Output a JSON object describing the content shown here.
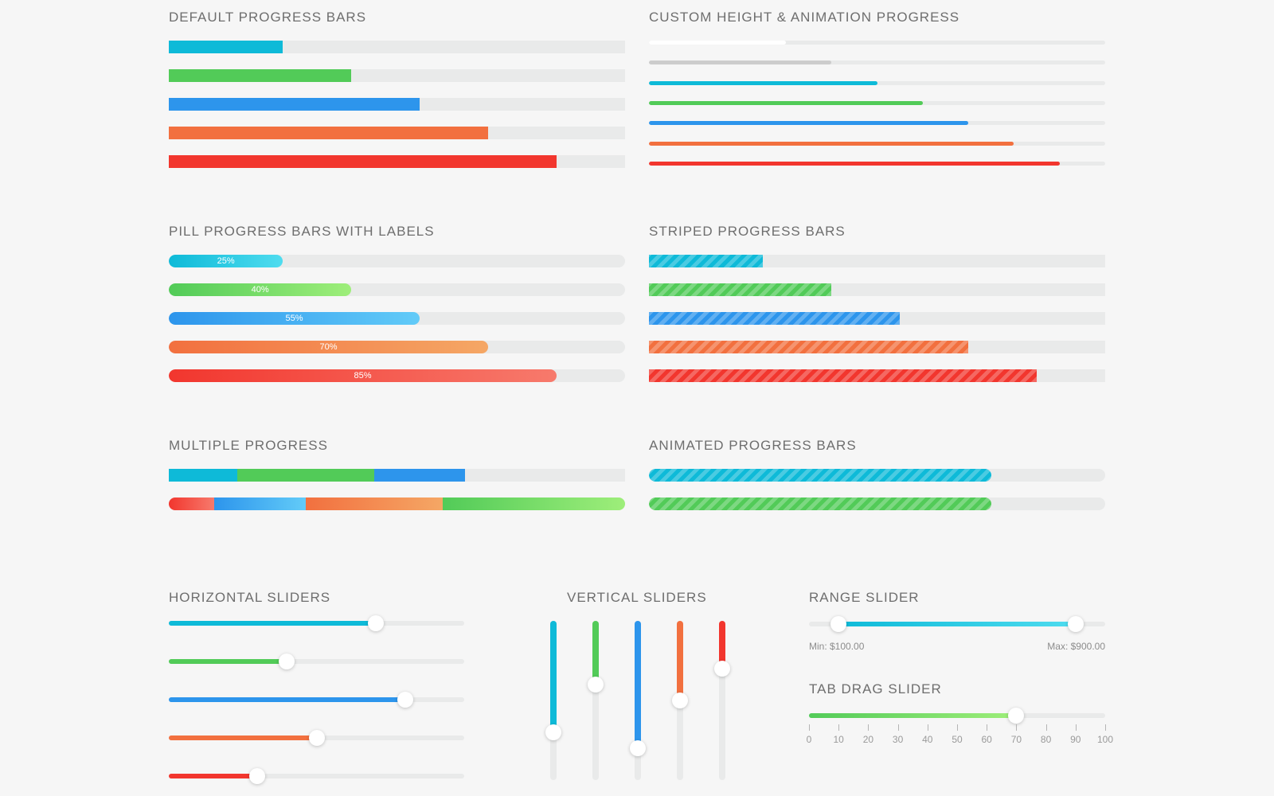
{
  "colors": {
    "cyan": "#0ebad8",
    "green": "#52cb58",
    "blue": "#2d95ec",
    "orange": "#f2703f",
    "red": "#f2362e",
    "gray": "#cccccc",
    "white": "#ffffff",
    "track": "#e9eaea"
  },
  "default_progress": {
    "title": "DEFAULT PROGRESS BARS",
    "bars": [
      {
        "value": 25,
        "color": "#0ebad8"
      },
      {
        "value": 40,
        "color": "#52cb58"
      },
      {
        "value": 55,
        "color": "#2d95ec"
      },
      {
        "value": 70,
        "color": "#f2703f"
      },
      {
        "value": 85,
        "color": "#f2362e"
      }
    ]
  },
  "custom_height": {
    "title": "CUSTOM HEIGHT & ANIMATION PROGRESS",
    "bars": [
      {
        "value": 30,
        "color": "#ffffff"
      },
      {
        "value": 40,
        "color": "#cccccc"
      },
      {
        "value": 50,
        "color": "#0ebad8"
      },
      {
        "value": 60,
        "color": "#52cb58"
      },
      {
        "value": 70,
        "color": "#2d95ec"
      },
      {
        "value": 80,
        "color": "#f2703f"
      },
      {
        "value": 90,
        "color": "#f2362e"
      }
    ]
  },
  "pill_progress": {
    "title": "PILL PROGRESS BARS WITH LABELS",
    "bars": [
      {
        "value": 25,
        "label": "25%",
        "from": "#0ebad8",
        "to": "#4fdcef"
      },
      {
        "value": 40,
        "label": "40%",
        "from": "#52cb58",
        "to": "#9eee7a"
      },
      {
        "value": 55,
        "label": "55%",
        "from": "#2d95ec",
        "to": "#62cbf8"
      },
      {
        "value": 70,
        "label": "70%",
        "from": "#f2703f",
        "to": "#f5a765"
      },
      {
        "value": 85,
        "label": "85%",
        "from": "#f2362e",
        "to": "#f77a6c"
      }
    ]
  },
  "striped_progress": {
    "title": "STRIPED PROGRESS BARS",
    "bars": [
      {
        "value": 25,
        "color": "#0ebad8"
      },
      {
        "value": 40,
        "color": "#52cb58"
      },
      {
        "value": 55,
        "color": "#2d95ec"
      },
      {
        "value": 70,
        "color": "#f2703f"
      },
      {
        "value": 85,
        "color": "#f2362e"
      }
    ]
  },
  "multiple_progress": {
    "title": "MULTIPLE PROGRESS",
    "bars": [
      {
        "segments": [
          {
            "value": 15,
            "from": "#0ebad8",
            "to": "#0ebad8"
          },
          {
            "value": 30,
            "from": "#52cb58",
            "to": "#52cb58"
          },
          {
            "value": 20,
            "from": "#2d95ec",
            "to": "#2d95ec"
          }
        ]
      },
      {
        "segments": [
          {
            "value": 10,
            "from": "#f2362e",
            "to": "#f77a6c"
          },
          {
            "value": 20,
            "from": "#2d95ec",
            "to": "#62cbf8"
          },
          {
            "value": 30,
            "from": "#f2703f",
            "to": "#f5a765"
          },
          {
            "value": 40,
            "from": "#52cb58",
            "to": "#9eee7a"
          }
        ]
      }
    ]
  },
  "animated_progress": {
    "title": "ANIMATED PROGRESS BARS",
    "bars": [
      {
        "value": 75,
        "color": "#0ebad8"
      },
      {
        "value": 75,
        "color": "#52cb58"
      }
    ]
  },
  "horizontal_sliders": {
    "title": "HORIZONTAL SLIDERS",
    "sliders": [
      {
        "value": 70,
        "color": "#0ebad8"
      },
      {
        "value": 40,
        "color": "#52cb58"
      },
      {
        "value": 80,
        "color": "#2d95ec"
      },
      {
        "value": 50,
        "color": "#f2703f"
      },
      {
        "value": 30,
        "color": "#f2362e"
      }
    ]
  },
  "vertical_sliders": {
    "title": "VERTICAL SLIDERS",
    "sliders": [
      {
        "value": 30,
        "color": "#0ebad8"
      },
      {
        "value": 60,
        "color": "#52cb58"
      },
      {
        "value": 20,
        "color": "#2d95ec"
      },
      {
        "value": 50,
        "color": "#f2703f"
      },
      {
        "value": 70,
        "color": "#f2362e"
      }
    ]
  },
  "range_slider": {
    "title": "RANGE SLIDER",
    "min_value": 10,
    "max_value": 90,
    "min_label": "Min: $100.00",
    "max_label": "Max: $900.00"
  },
  "tab_drag_slider": {
    "title": "TAB DRAG SLIDER",
    "value": 70,
    "ticks": [
      "0",
      "10",
      "20",
      "30",
      "40",
      "50",
      "60",
      "70",
      "80",
      "90",
      "100"
    ]
  }
}
